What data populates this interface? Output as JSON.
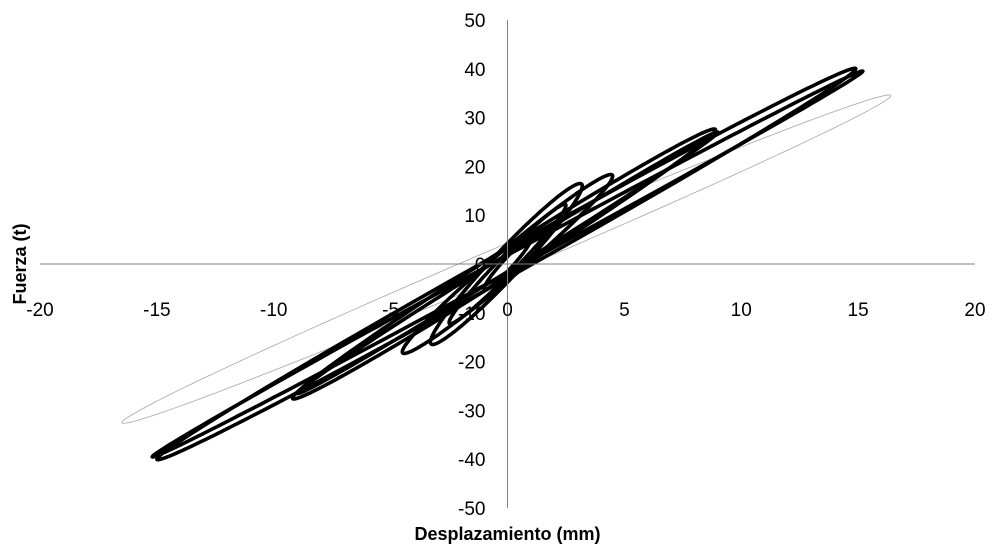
{
  "chart_data": {
    "type": "line",
    "title": "",
    "xlabel": "Desplazamiento (mm)",
    "ylabel": "Fuerza (t)",
    "xlim": [
      -20,
      20
    ],
    "ylim": [
      -50,
      50
    ],
    "x_ticks": [
      -20,
      -15,
      -10,
      -5,
      0,
      5,
      10,
      15,
      20
    ],
    "y_ticks": [
      -50,
      -40,
      -30,
      -20,
      -10,
      0,
      10,
      20,
      30,
      40,
      50
    ],
    "grid": false,
    "legend": "none",
    "series": [
      {
        "color": "#b0b0b0",
        "style": "thin",
        "loops": [
          {
            "max": [
              16.4,
              34.5
            ],
            "min": [
              -16.5,
              -32.5
            ],
            "width": 3.2
          }
        ]
      },
      {
        "color": "#000000",
        "style": "thick",
        "loops": [
          {
            "max": [
              15.2,
              39.5
            ],
            "min": [
              -15.2,
              -39.5
            ],
            "width": 1.8
          },
          {
            "max": [
              14.9,
              40.0
            ],
            "min": [
              -15.0,
              -40.0
            ],
            "width": 3.0
          },
          {
            "max": [
              8.9,
              27.5
            ],
            "min": [
              -9.2,
              -27.5
            ],
            "width": 3.0
          },
          {
            "max": [
              9.0,
              27.0
            ],
            "min": [
              -9.0,
              -26.5
            ],
            "width": 1.8
          },
          {
            "max": [
              4.5,
              18.0
            ],
            "min": [
              -4.5,
              -18.0
            ],
            "width": 3.5
          },
          {
            "max": [
              3.2,
              16.0
            ],
            "min": [
              -3.3,
              -16.0
            ],
            "width": 4.0
          },
          {
            "max": [
              2.5,
              12.0
            ],
            "min": [
              -2.5,
              -12.0
            ],
            "width": 2.5
          },
          {
            "max": [
              1.0,
              5.0
            ],
            "min": [
              -1.0,
              -5.0
            ],
            "width": 1.5
          }
        ]
      }
    ]
  }
}
